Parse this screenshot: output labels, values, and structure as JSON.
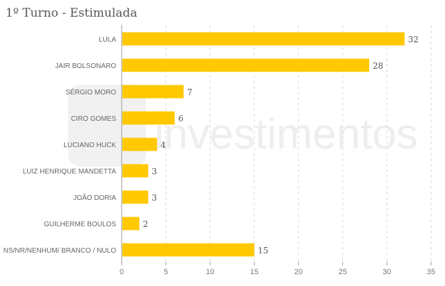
{
  "chart_data": {
    "type": "bar",
    "orientation": "horizontal",
    "title": "1º Turno - Estimulada",
    "categories": [
      "LULA",
      "JAIR BOLSONARO",
      "SÉRGIO MORO",
      "CIRO GOMES",
      "LUCIANO HUCK",
      "LUIZ HENRIQUE MANDETTA",
      "JOÃO DORIA",
      "GUILHERME BOULOS",
      "NS/NR/NENHUM/ BRANCO / NULO"
    ],
    "values": [
      32,
      28,
      7,
      6,
      4,
      3,
      3,
      2,
      15
    ],
    "xlim": [
      0,
      35
    ],
    "xticks": [
      0,
      5,
      10,
      15,
      20,
      25,
      30,
      35
    ],
    "grid": "vertical-dashed",
    "bar_color": "#FFC800",
    "watermark": "investimentos"
  }
}
